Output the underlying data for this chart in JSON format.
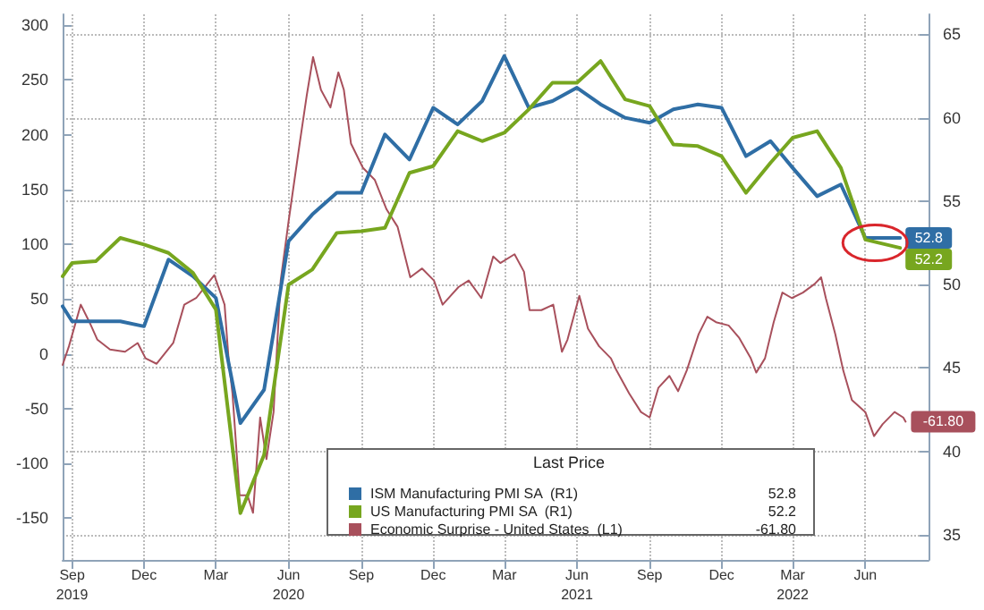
{
  "chart_data": {
    "type": "line",
    "legend_title": "Last Price",
    "annotations": [
      "52.8",
      "52.2",
      "-61.80"
    ],
    "xlim": [
      "2019-08-20",
      "2022-08-20"
    ],
    "xticks": [
      {
        "value": "2019-09-01",
        "label": "Sep\n2019"
      },
      {
        "value": "2019-12-01",
        "label": "Dec"
      },
      {
        "value": "2020-03-01",
        "label": "Mar"
      },
      {
        "value": "2020-06-01",
        "label": "Jun\n2020"
      },
      {
        "value": "2020-09-01",
        "label": "Sep"
      },
      {
        "value": "2020-12-01",
        "label": "Dec"
      },
      {
        "value": "2021-03-01",
        "label": "Mar"
      },
      {
        "value": "2021-06-01",
        "label": "Jun\n2021"
      },
      {
        "value": "2021-09-01",
        "label": "Sep"
      },
      {
        "value": "2021-12-01",
        "label": "Dec"
      },
      {
        "value": "2022-03-01",
        "label": "Mar\n2022"
      },
      {
        "value": "2022-06-01",
        "label": "Jun"
      }
    ],
    "ylim": [
      -188,
      310
    ],
    "yticks": [
      -150,
      -100,
      -50,
      0,
      50,
      100,
      150,
      200,
      250,
      300
    ],
    "y2lim": [
      33.5,
      66.2
    ],
    "y2ticks": [
      35,
      40,
      45,
      50,
      55,
      60,
      65
    ],
    "grid": true,
    "legend": "bottom",
    "marker": "none",
    "line_style": "solid",
    "series": [
      {
        "name": "ISM Manufacturing PMI SA  (R1)",
        "color": "#2f6ea5",
        "axis": "y2",
        "x": [
          "2019-08-20",
          "2019-09-01",
          "2019-10-01",
          "2019-11-01",
          "2019-12-01",
          "2020-01-01",
          "2020-02-01",
          "2020-03-01",
          "2020-04-01",
          "2020-05-01",
          "2020-06-01",
          "2020-07-01",
          "2020-08-01",
          "2020-09-01",
          "2020-10-01",
          "2020-11-01",
          "2020-12-01",
          "2021-01-01",
          "2021-02-01",
          "2021-03-01",
          "2021-04-01",
          "2021-05-01",
          "2021-06-01",
          "2021-07-01",
          "2021-08-01",
          "2021-09-01",
          "2021-10-01",
          "2021-11-01",
          "2021-12-01",
          "2022-01-01",
          "2022-02-01",
          "2022-03-01",
          "2022-04-01",
          "2022-05-01",
          "2022-06-01",
          "2022-07-15"
        ],
        "values": [
          48.7,
          47.8,
          47.8,
          47.8,
          47.5,
          51.5,
          50.5,
          49.2,
          41.7,
          43.7,
          52.6,
          54.2,
          55.5,
          55.5,
          59.0,
          57.5,
          60.6,
          59.6,
          61.0,
          63.7,
          60.6,
          61.0,
          61.8,
          60.8,
          60.0,
          59.7,
          60.5,
          60.8,
          60.6,
          57.7,
          58.6,
          57.0,
          55.3,
          56.0,
          52.8,
          52.8
        ],
        "value_labels": [
          null,
          null,
          null,
          null,
          null,
          null,
          null,
          null,
          null,
          null,
          null,
          null,
          null,
          null,
          null,
          null,
          null,
          null,
          null,
          null,
          null,
          null,
          null,
          null,
          null,
          null,
          null,
          null,
          null,
          null,
          null,
          null,
          null,
          null,
          null,
          "52.8"
        ]
      },
      {
        "name": "US Manufacturing PMI SA  (R1)",
        "color": "#77a61f",
        "axis": "y2",
        "x": [
          "2019-08-20",
          "2019-09-01",
          "2019-10-01",
          "2019-11-01",
          "2019-12-01",
          "2020-01-01",
          "2020-02-01",
          "2020-03-01",
          "2020-04-01",
          "2020-05-01",
          "2020-06-01",
          "2020-07-01",
          "2020-08-01",
          "2020-09-01",
          "2020-10-01",
          "2020-11-01",
          "2020-12-01",
          "2021-01-01",
          "2021-02-01",
          "2021-03-01",
          "2021-04-01",
          "2021-05-01",
          "2021-06-01",
          "2021-07-01",
          "2021-08-01",
          "2021-09-01",
          "2021-10-01",
          "2021-11-01",
          "2021-12-01",
          "2022-01-01",
          "2022-02-01",
          "2022-03-01",
          "2022-04-01",
          "2022-05-01",
          "2022-06-01",
          "2022-07-15"
        ],
        "values": [
          50.5,
          51.3,
          51.4,
          52.8,
          52.4,
          51.9,
          50.7,
          48.5,
          36.3,
          39.8,
          50.0,
          50.9,
          53.1,
          53.2,
          53.4,
          56.7,
          57.1,
          59.2,
          58.6,
          59.1,
          60.5,
          62.1,
          62.1,
          63.4,
          61.1,
          60.7,
          58.4,
          58.3,
          57.7,
          55.5,
          57.3,
          58.8,
          59.2,
          57.0,
          52.7,
          52.2
        ],
        "value_labels": [
          null,
          null,
          null,
          null,
          null,
          null,
          null,
          null,
          null,
          null,
          null,
          null,
          null,
          null,
          null,
          null,
          null,
          null,
          null,
          null,
          null,
          null,
          null,
          null,
          null,
          null,
          null,
          null,
          null,
          null,
          null,
          null,
          null,
          null,
          null,
          "52.2"
        ]
      },
      {
        "name": "Economic Surprise - United States  (L1)",
        "color": "#a8505c",
        "axis": "y",
        "x": [
          "2019-08-20",
          "2019-08-28",
          "2019-09-12",
          "2019-09-23",
          "2019-10-03",
          "2019-10-19",
          "2019-11-07",
          "2019-11-23",
          "2019-12-03",
          "2019-12-17",
          "2020-01-07",
          "2020-01-21",
          "2020-02-05",
          "2020-02-28",
          "2020-03-12",
          "2020-03-17",
          "2020-03-22",
          "2020-03-31",
          "2020-04-10",
          "2020-04-17",
          "2020-04-26",
          "2020-05-04",
          "2020-05-13",
          "2020-05-22",
          "2020-06-01",
          "2020-06-15",
          "2020-06-24",
          "2020-07-02",
          "2020-07-12",
          "2020-07-24",
          "2020-08-03",
          "2020-08-10",
          "2020-08-19",
          "2020-09-03",
          "2020-09-18",
          "2020-10-03",
          "2020-10-17",
          "2020-11-02",
          "2020-11-17",
          "2020-12-02",
          "2020-12-13",
          "2021-01-02",
          "2021-01-15",
          "2021-01-31",
          "2021-02-15",
          "2021-02-24",
          "2021-03-14",
          "2021-03-26",
          "2021-04-02",
          "2021-04-17",
          "2021-05-02",
          "2021-05-13",
          "2021-05-20",
          "2021-06-04",
          "2021-06-15",
          "2021-06-29",
          "2021-07-14",
          "2021-07-21",
          "2021-08-06",
          "2021-08-21",
          "2021-09-01",
          "2021-09-12",
          "2021-09-26",
          "2021-10-07",
          "2021-10-18",
          "2021-11-02",
          "2021-11-13",
          "2021-11-24",
          "2021-12-10",
          "2021-12-23",
          "2022-01-07",
          "2022-01-14",
          "2022-01-25",
          "2022-02-05",
          "2022-02-16",
          "2022-02-28",
          "2022-03-14",
          "2022-03-29",
          "2022-04-06",
          "2022-04-12",
          "2022-04-24",
          "2022-05-04",
          "2022-05-15",
          "2022-06-01",
          "2022-06-12",
          "2022-06-23",
          "2022-07-08",
          "2022-07-19",
          "2022-07-22"
        ],
        "values": [
          -10,
          7,
          45,
          29,
          13,
          4,
          2,
          10,
          -4,
          -9,
          10,
          45,
          51,
          72,
          45,
          -4,
          -36,
          -129,
          -129,
          -145,
          -58,
          -96,
          -53,
          67,
          121,
          192,
          236,
          271,
          241,
          225,
          257,
          241,
          192,
          170,
          159,
          132,
          116,
          70,
          78,
          67,
          45,
          61,
          67,
          51,
          89,
          83,
          91,
          75,
          40,
          40,
          45,
          2,
          13,
          53,
          23,
          7,
          -4,
          -15,
          -36,
          -53,
          -58,
          -31,
          -20,
          -34,
          -15,
          18,
          34,
          29,
          26,
          15,
          -4,
          -17,
          -4,
          29,
          56,
          51,
          56,
          64,
          70,
          51,
          18,
          -15,
          -42,
          -53,
          -75,
          -64,
          -53,
          -58,
          -61.8
        ],
        "value_labels": [
          null,
          null,
          null,
          null,
          null,
          null,
          null,
          null,
          null,
          null,
          null,
          null,
          null,
          null,
          null,
          null,
          null,
          null,
          null,
          null,
          null,
          null,
          null,
          null,
          null,
          null,
          null,
          null,
          null,
          null,
          null,
          null,
          null,
          null,
          null,
          null,
          null,
          null,
          null,
          null,
          null,
          null,
          null,
          null,
          null,
          null,
          null,
          null,
          null,
          null,
          null,
          null,
          null,
          null,
          null,
          null,
          null,
          null,
          null,
          null,
          null,
          null,
          null,
          null,
          null,
          null,
          null,
          null,
          null,
          null,
          null,
          null,
          null,
          null,
          null,
          null,
          null,
          null,
          null,
          null,
          null,
          null,
          null,
          null,
          null,
          null,
          null,
          null,
          "-61.80"
        ]
      }
    ]
  }
}
